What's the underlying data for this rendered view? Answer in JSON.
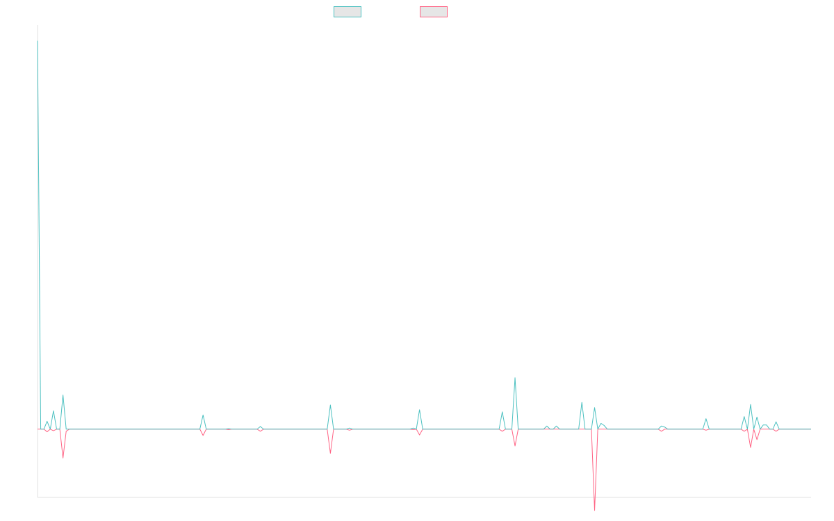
{
  "chart_data": {
    "type": "line",
    "title": "",
    "xlabel": "",
    "ylabel": "",
    "ylim": [
      -13,
      77
    ],
    "grid": false,
    "legend": "top-center",
    "series": [
      {
        "color": "#4bc0c0",
        "values": [
          74,
          0,
          0,
          1.5,
          0,
          3.5,
          0,
          0,
          6.5,
          0,
          0,
          0,
          0,
          0,
          0,
          0,
          0,
          0,
          0,
          0,
          0,
          0,
          0,
          0,
          0,
          0,
          0,
          0,
          0,
          0,
          0,
          0,
          0,
          0,
          0,
          0,
          0,
          0,
          0,
          0,
          0,
          0,
          0,
          0,
          0,
          0,
          0,
          0,
          0,
          0,
          0,
          0,
          2.7,
          0,
          0,
          0,
          0,
          0,
          0,
          0,
          0.1,
          0,
          0,
          0,
          0,
          0,
          0,
          0,
          0,
          0,
          0.5,
          0,
          0,
          0,
          0,
          0,
          0,
          0,
          0,
          0,
          0,
          0,
          0,
          0,
          0,
          0,
          0,
          0,
          0,
          0,
          0,
          0,
          4.6,
          0,
          0,
          0,
          0,
          0,
          0.2,
          0,
          0,
          0,
          0,
          0,
          0,
          0,
          0,
          0,
          0,
          0,
          0,
          0,
          0,
          0,
          0,
          0,
          0,
          0,
          0.2,
          0,
          3.7,
          0,
          0,
          0,
          0,
          0,
          0,
          0,
          0,
          0,
          0,
          0,
          0,
          0,
          0,
          0,
          0,
          0,
          0,
          0,
          0,
          0,
          0,
          0,
          0,
          0,
          3.3,
          0,
          0,
          0,
          9.8,
          0,
          0,
          0,
          0,
          0,
          0,
          0,
          0,
          0,
          0.6,
          0,
          0,
          0.6,
          0,
          0,
          0,
          0,
          0,
          0,
          0,
          5.1,
          0,
          0,
          0,
          4.1,
          0,
          1.1,
          0.7,
          0,
          0,
          0,
          0,
          0,
          0,
          0,
          0,
          0,
          0,
          0,
          0,
          0,
          0,
          0,
          0,
          0,
          0.6,
          0.4,
          0,
          0,
          0,
          0,
          0,
          0,
          0,
          0,
          0,
          0,
          0,
          0,
          2,
          0,
          0,
          0,
          0,
          0,
          0,
          0,
          0,
          0,
          0,
          0,
          2.4,
          0,
          4.7,
          0,
          2.3,
          0,
          0.8,
          0.8,
          0,
          0,
          1.4,
          0,
          0,
          0,
          0,
          0,
          0,
          0,
          0,
          0,
          0,
          0
        ]
      },
      {
        "color": "#ff6384",
        "values": [
          0,
          0,
          0,
          -0.5,
          0,
          -0.3,
          0,
          0,
          -5.5,
          -0.4,
          0,
          0,
          0,
          0,
          0,
          0,
          0,
          0,
          0,
          0,
          0,
          0,
          0,
          0,
          0,
          0,
          0,
          0,
          0,
          0,
          0,
          0,
          0,
          0,
          0,
          0,
          0,
          0,
          0,
          0,
          0,
          0,
          0,
          0,
          0,
          0,
          0,
          0,
          0,
          0,
          0,
          0,
          -1.2,
          0,
          0,
          0,
          0,
          0,
          0,
          0,
          -0.1,
          0,
          0,
          0,
          0,
          0,
          0,
          0,
          0,
          0,
          -0.4,
          0,
          0,
          0,
          0,
          0,
          0,
          0,
          0,
          0,
          0,
          0,
          0,
          0,
          0,
          0,
          0,
          0,
          0,
          0,
          0,
          0,
          -4.6,
          0,
          0,
          0,
          0,
          0,
          -0.2,
          0,
          0,
          0,
          0,
          0,
          0,
          0,
          0,
          0,
          0,
          0,
          0,
          0,
          0,
          0,
          0,
          0,
          0,
          0,
          -0.1,
          0,
          -1.1,
          0,
          0,
          0,
          0,
          0,
          0,
          0,
          0,
          0,
          0,
          0,
          0,
          0,
          0,
          0,
          0,
          0,
          0,
          0,
          0,
          0,
          0,
          0,
          0,
          0,
          -0.4,
          0,
          0,
          0,
          -3.2,
          0,
          0,
          0,
          0,
          0,
          0,
          0,
          0,
          0,
          0,
          0,
          0,
          0,
          0,
          0,
          0,
          0,
          0,
          0,
          0,
          0,
          0,
          0,
          0,
          -15.5,
          0,
          0,
          0,
          0,
          0,
          0,
          0,
          0,
          0,
          0,
          0,
          0,
          0,
          0,
          0,
          0,
          0,
          0,
          0,
          0,
          -0.4,
          0,
          0,
          0,
          0,
          0,
          0,
          0,
          0,
          0,
          0,
          0,
          0,
          0,
          -0.2,
          0,
          0,
          0,
          0,
          0,
          0,
          0,
          0,
          0,
          0,
          0,
          -0.4,
          0,
          -3.5,
          0,
          -2,
          0,
          0,
          0,
          0,
          0,
          -0.4,
          0,
          0,
          0,
          0,
          0,
          0,
          0,
          0,
          0,
          0,
          0
        ]
      }
    ]
  }
}
